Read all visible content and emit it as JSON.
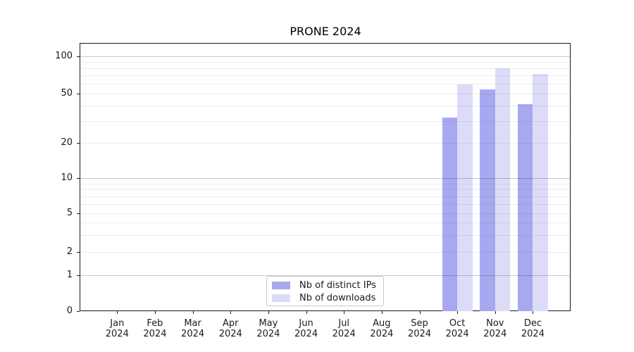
{
  "chart_data": {
    "type": "bar",
    "title": "PRONE 2024",
    "categories": [
      "Jan 2024",
      "Feb 2024",
      "Mar 2024",
      "Apr 2024",
      "May 2024",
      "Jun 2024",
      "Jul 2024",
      "Aug 2024",
      "Sep 2024",
      "Oct 2024",
      "Nov 2024",
      "Dec 2024"
    ],
    "series": [
      {
        "name": "Nb of distinct IPs",
        "color": "#a8a8f0",
        "values": [
          null,
          null,
          null,
          null,
          null,
          null,
          null,
          null,
          null,
          32,
          54,
          41
        ]
      },
      {
        "name": "Nb of downloads",
        "color": "#dcdcf8",
        "values": [
          null,
          null,
          null,
          null,
          null,
          null,
          null,
          null,
          null,
          59,
          80,
          72
        ]
      }
    ],
    "yticks": [
      0,
      1,
      2,
      5,
      10,
      20,
      50,
      100
    ],
    "ylim": [
      0,
      130
    ],
    "yscale": "log-like",
    "xlabel": "",
    "ylabel": "",
    "grid": "horizontal major+minor",
    "legend_position": "bottom-center inside plot"
  }
}
